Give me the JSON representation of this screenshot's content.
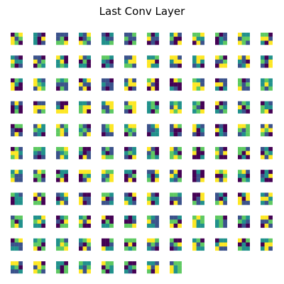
{
  "figure": {
    "title": "Last Conv Layer"
  },
  "montage": {
    "columns": 12,
    "filter_count": 128,
    "kernel_rows": 3,
    "kernel_cols": 3,
    "colormap": [
      "#440154",
      "#3b528b",
      "#21918c",
      "#5ec962",
      "#fde725"
    ]
  }
}
